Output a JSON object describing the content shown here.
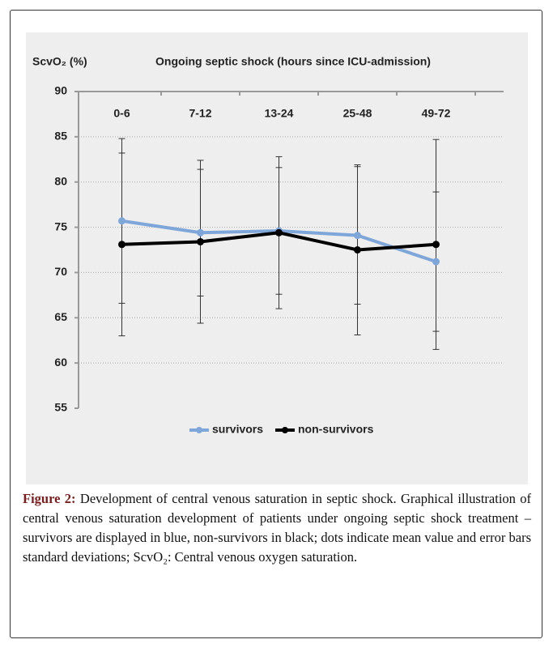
{
  "chart_data": {
    "type": "line",
    "title": "Ongoing septic shock (hours since ICU-admission)",
    "y_label": "ScvO₂ (%)",
    "categories": [
      "0-6",
      "7-12",
      "13-24",
      "25-48",
      "49-72"
    ],
    "series": [
      {
        "name": "survivors",
        "color": "#7ea6d9",
        "values": [
          75.7,
          74.4,
          74.6,
          74.1,
          71.2
        ],
        "errors": [
          9.1,
          7.0,
          7.0,
          7.6,
          7.7
        ]
      },
      {
        "name": "non-survivors",
        "color": "#000000",
        "values": [
          73.1,
          73.4,
          74.4,
          72.5,
          73.1
        ],
        "errors": [
          10.1,
          9.0,
          8.4,
          9.4,
          11.6
        ]
      }
    ],
    "ylim": [
      55,
      90
    ],
    "yticks": [
      55,
      60,
      65,
      70,
      75,
      80,
      85,
      90
    ],
    "grid": true,
    "legend": "bottom"
  },
  "caption": {
    "label": "Figure 2:",
    "text": "Development of central venous saturation in septic shock. Graphical illustration of central venous saturation development of patients under ongoing septic shock treatment – survivors are displayed in blue, non-survivors in black; dots indicate mean value and error bars standard deviations; ScvO₂: Central venous oxygen saturation."
  }
}
